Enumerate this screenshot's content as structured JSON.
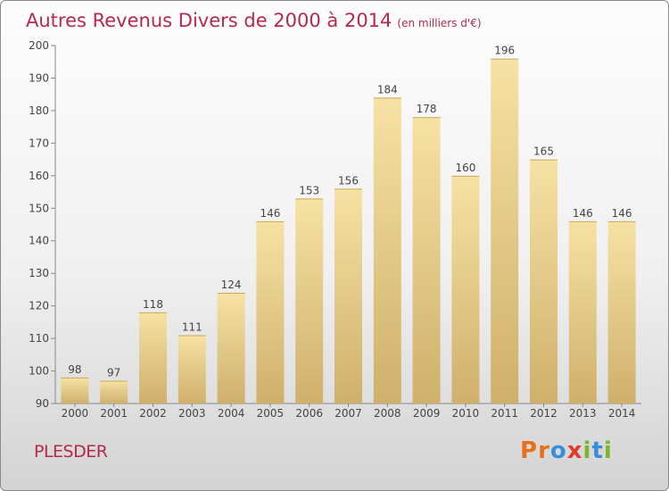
{
  "header": {
    "title": "Autres Revenus Divers de 2000 à 2014",
    "unit": "(en milliers d'€)"
  },
  "footer": {
    "commune": "PLESDER",
    "logo_text": "Proxiti"
  },
  "colors": {
    "title": "#b4294c",
    "bar_light": "#f6e2a4",
    "bar_dark": "#cfb06b",
    "logo_letters": [
      "#e8701a",
      "#e8701a",
      "#3a8ed8",
      "#e03a2a",
      "#7bb52a",
      "#3a8ed8",
      "#7bb52a"
    ]
  },
  "chart_data": {
    "type": "bar",
    "title": "Autres Revenus Divers de 2000 à 2014",
    "subtitle": "(en milliers d'€)",
    "categories": [
      "2000",
      "2001",
      "2002",
      "2003",
      "2004",
      "2005",
      "2006",
      "2007",
      "2008",
      "2009",
      "2010",
      "2011",
      "2012",
      "2013",
      "2014"
    ],
    "values": [
      98,
      97,
      118,
      111,
      124,
      146,
      153,
      156,
      184,
      178,
      160,
      196,
      165,
      146,
      146
    ],
    "ylim": [
      90,
      200
    ],
    "yticks": [
      90,
      100,
      110,
      120,
      130,
      140,
      150,
      160,
      170,
      180,
      190,
      200
    ],
    "grid": false,
    "legend": "none"
  }
}
